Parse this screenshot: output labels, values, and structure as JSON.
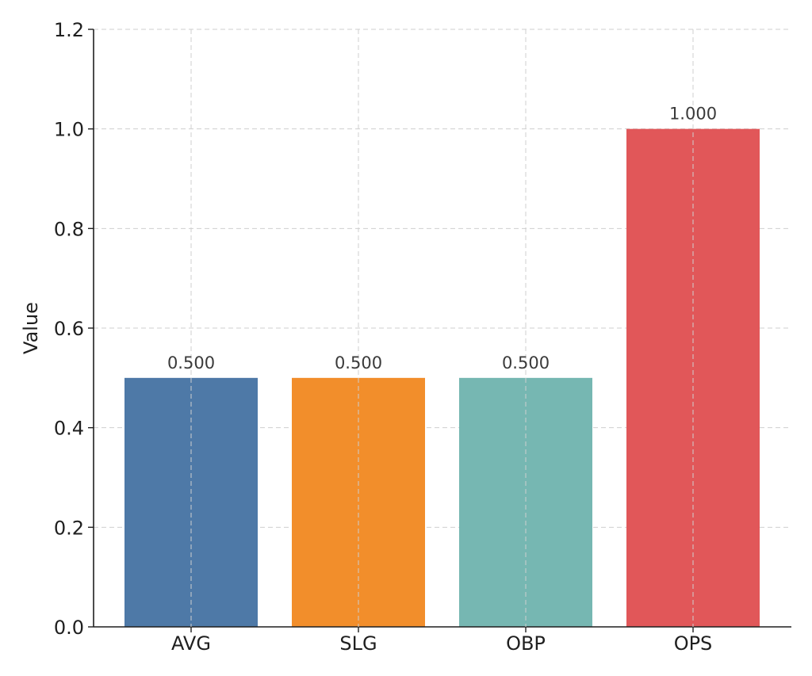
{
  "chart_data": {
    "type": "bar",
    "title": "",
    "xlabel": "",
    "ylabel": "Value",
    "categories": [
      "AVG",
      "SLG",
      "OBP",
      "OPS"
    ],
    "values": [
      0.5,
      0.5,
      0.5,
      1.0
    ],
    "value_labels": [
      "0.500",
      "0.500",
      "0.500",
      "1.000"
    ],
    "colors": [
      "#4e79a7",
      "#f28e2b",
      "#76b7b2",
      "#e15759"
    ],
    "ylim": [
      0,
      1.2
    ],
    "yticks": [
      0.0,
      0.2,
      0.4,
      0.6,
      0.8,
      1.0,
      1.2
    ],
    "ytick_labels": [
      "0.0",
      "0.2",
      "0.4",
      "0.6",
      "0.8",
      "1.0",
      "1.2"
    ],
    "grid": true
  }
}
